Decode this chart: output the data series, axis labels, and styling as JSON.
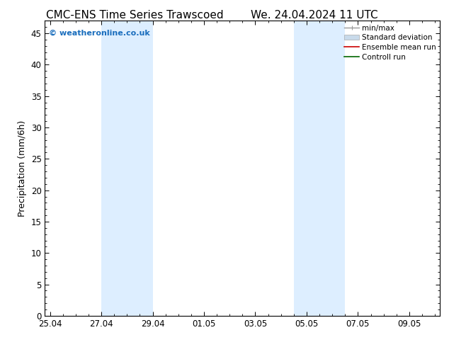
{
  "title_left": "CMC-ENS Time Series Trawscoed",
  "title_right": "We. 24.04.2024 11 UTC",
  "ylabel": "Precipitation (mm/6h)",
  "ylim": [
    0,
    47
  ],
  "yticks": [
    0,
    5,
    10,
    15,
    20,
    25,
    30,
    35,
    40,
    45
  ],
  "xtick_labels": [
    "25.04",
    "27.04",
    "29.04",
    "01.05",
    "03.05",
    "05.05",
    "07.05",
    "09.05"
  ],
  "xtick_positions": [
    0,
    2,
    4,
    6,
    8,
    10,
    12,
    14
  ],
  "xlim": [
    -0.2,
    15.2
  ],
  "shaded_bands": [
    {
      "xstart": 2,
      "xend": 4,
      "color": "#ddeeff"
    },
    {
      "xstart": 9.5,
      "xend": 11.5,
      "color": "#ddeeff"
    }
  ],
  "watermark": "© weatheronline.co.uk",
  "watermark_color": "#1a6ebd",
  "legend_items": [
    {
      "label": "min/max",
      "color": "#999999",
      "lw": 1.0
    },
    {
      "label": "Standard deviation",
      "color": "#c8daea",
      "lw": 5
    },
    {
      "label": "Ensemble mean run",
      "color": "#cc0000",
      "lw": 1.2
    },
    {
      "label": "Controll run",
      "color": "#006600",
      "lw": 1.2
    }
  ],
  "background_color": "#ffffff",
  "title_fontsize": 11,
  "tick_fontsize": 8.5,
  "ylabel_fontsize": 9,
  "legend_fontsize": 7.5
}
